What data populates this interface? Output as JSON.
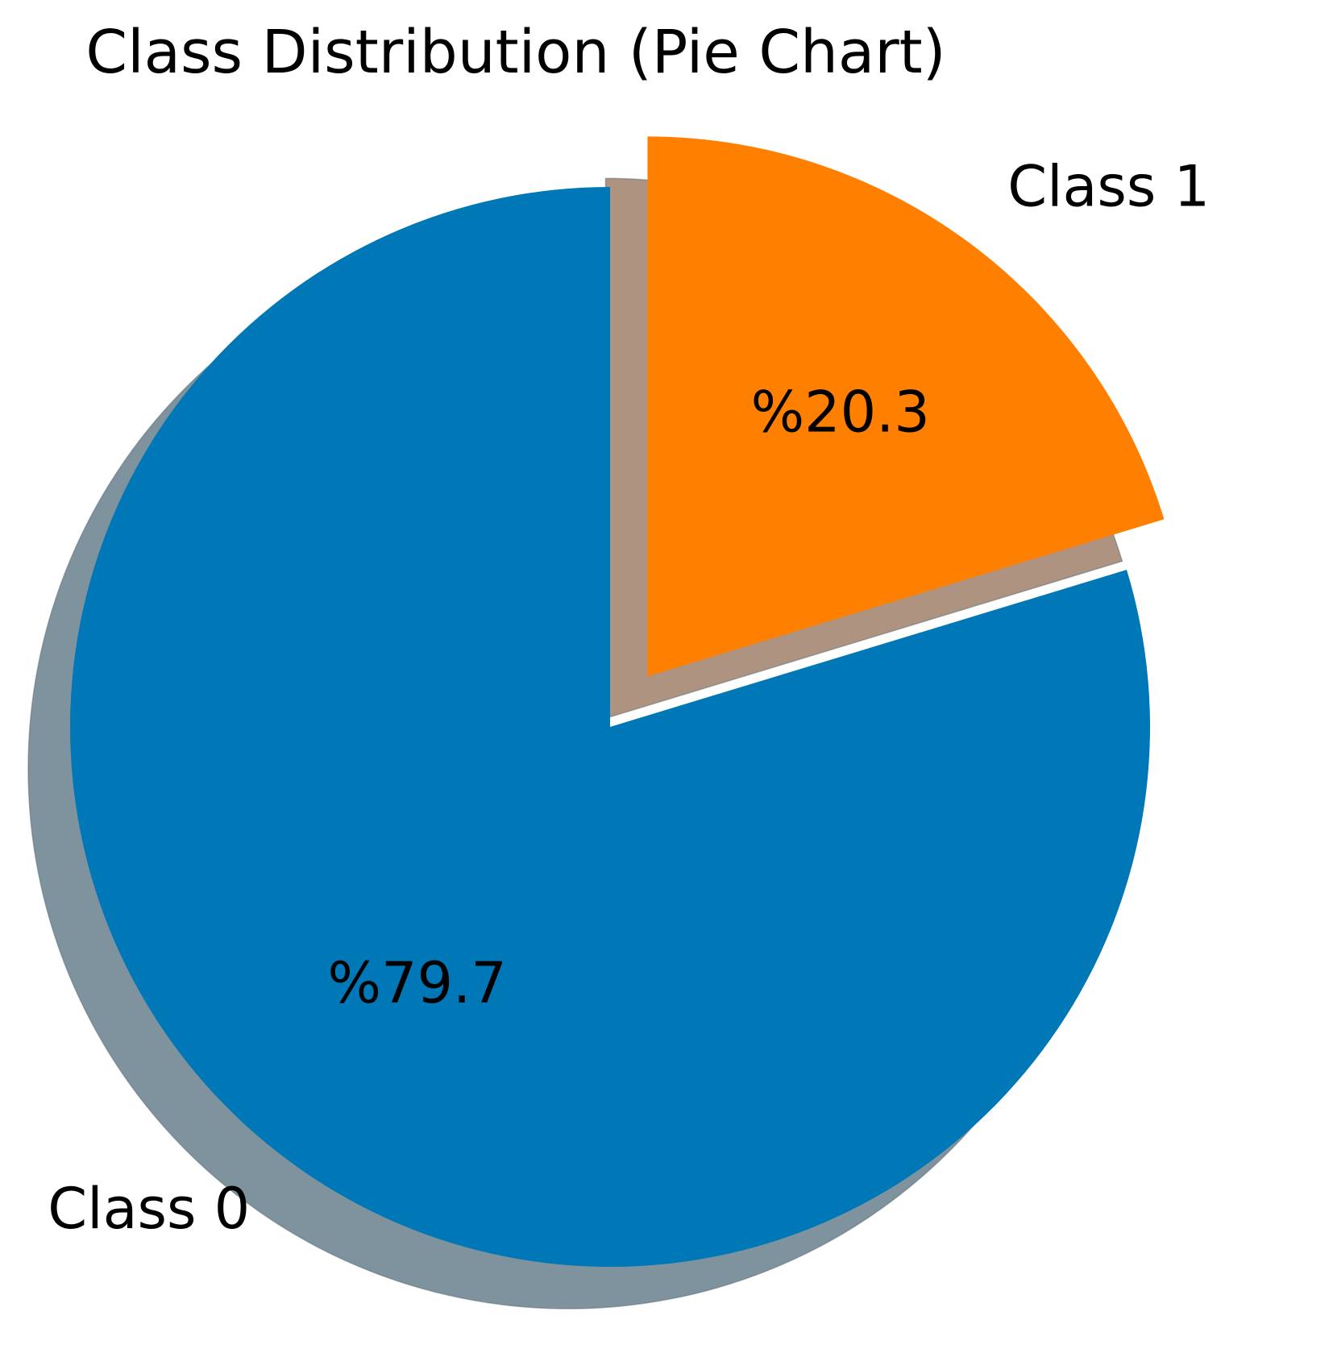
{
  "chart_data": {
    "type": "pie",
    "title": "Class Distribution (Pie Chart)",
    "slices": [
      {
        "label": "Class 0",
        "value": 79.7,
        "percent_label": "%79.7",
        "color": "#0077b6",
        "shadow_color": "#7f939e",
        "exploded": false
      },
      {
        "label": "Class 1",
        "value": 20.3,
        "percent_label": "%20.3",
        "color": "#ff7f00",
        "shadow_color": "#ad9380",
        "exploded": true
      }
    ],
    "start_angle": "top, clockwise from Class 1",
    "shadow": true,
    "legend": "none"
  }
}
